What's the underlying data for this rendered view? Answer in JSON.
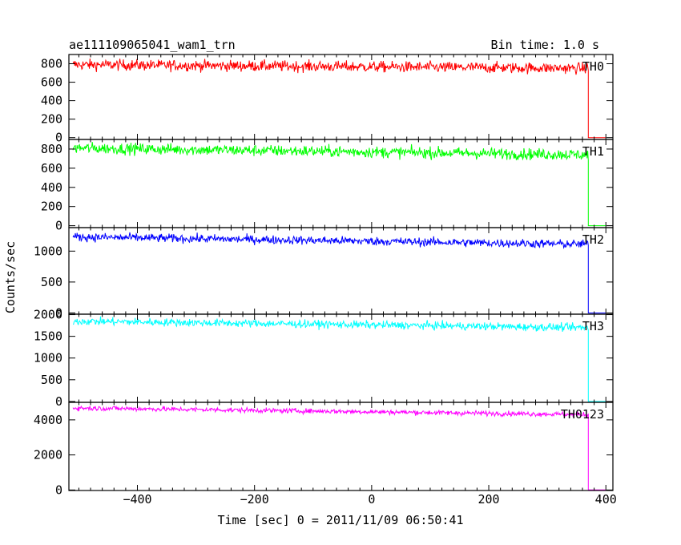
{
  "chart_data": {
    "type": "line",
    "title": "ae111109065041_wam1_trn",
    "subtitle": "Bin time: 1.0 s",
    "xlabel": "Time [sec] 0 = 2011/11/09 06:50:41",
    "ylabel": "Counts/sec",
    "xlim": [
      -517,
      412
    ],
    "xticks": [
      -400,
      -200,
      0,
      200,
      400
    ],
    "xtick_labels": [
      "−400",
      "−200",
      "0",
      "200",
      "400"
    ],
    "drop_time": 370,
    "grid": false,
    "panels": [
      {
        "name": "TH0",
        "color": "#ff0000",
        "ylim": [
          -20,
          900
        ],
        "yticks": [
          0,
          200,
          400,
          600,
          800
        ],
        "ytick_labels": [
          "0",
          "200",
          "400",
          "600",
          "800"
        ],
        "level_start": 790,
        "level_end": 750,
        "noise": 30,
        "after_drop": 0
      },
      {
        "name": "TH1",
        "color": "#00ff00",
        "ylim": [
          -20,
          900
        ],
        "yticks": [
          0,
          200,
          400,
          600,
          800
        ],
        "ytick_labels": [
          "0",
          "200",
          "400",
          "600",
          "800"
        ],
        "level_start": 810,
        "level_end": 740,
        "noise": 30,
        "after_drop": 0
      },
      {
        "name": "TH2",
        "color": "#0000ff",
        "ylim": [
          -20,
          1380
        ],
        "yticks": [
          0,
          500,
          1000
        ],
        "ytick_labels": [
          "0",
          "500",
          "1000"
        ],
        "level_start": 1230,
        "level_end": 1110,
        "noise": 35,
        "after_drop": 0
      },
      {
        "name": "TH3",
        "color": "#00ffff",
        "ylim": [
          -20,
          2010
        ],
        "yticks": [
          0,
          500,
          1000,
          1500,
          2000
        ],
        "ytick_labels": [
          "0",
          "500",
          "1000",
          "1500",
          "2000"
        ],
        "level_start": 1850,
        "level_end": 1700,
        "noise": 45,
        "after_drop": 0
      },
      {
        "name": "TH0123",
        "color": "#ff00ff",
        "ylim": [
          -30,
          5000
        ],
        "yticks": [
          0,
          2000,
          4000
        ],
        "ytick_labels": [
          "0",
          "2000",
          "4000"
        ],
        "level_start": 4680,
        "level_end": 4300,
        "noise": 70,
        "after_drop": 0
      }
    ]
  }
}
